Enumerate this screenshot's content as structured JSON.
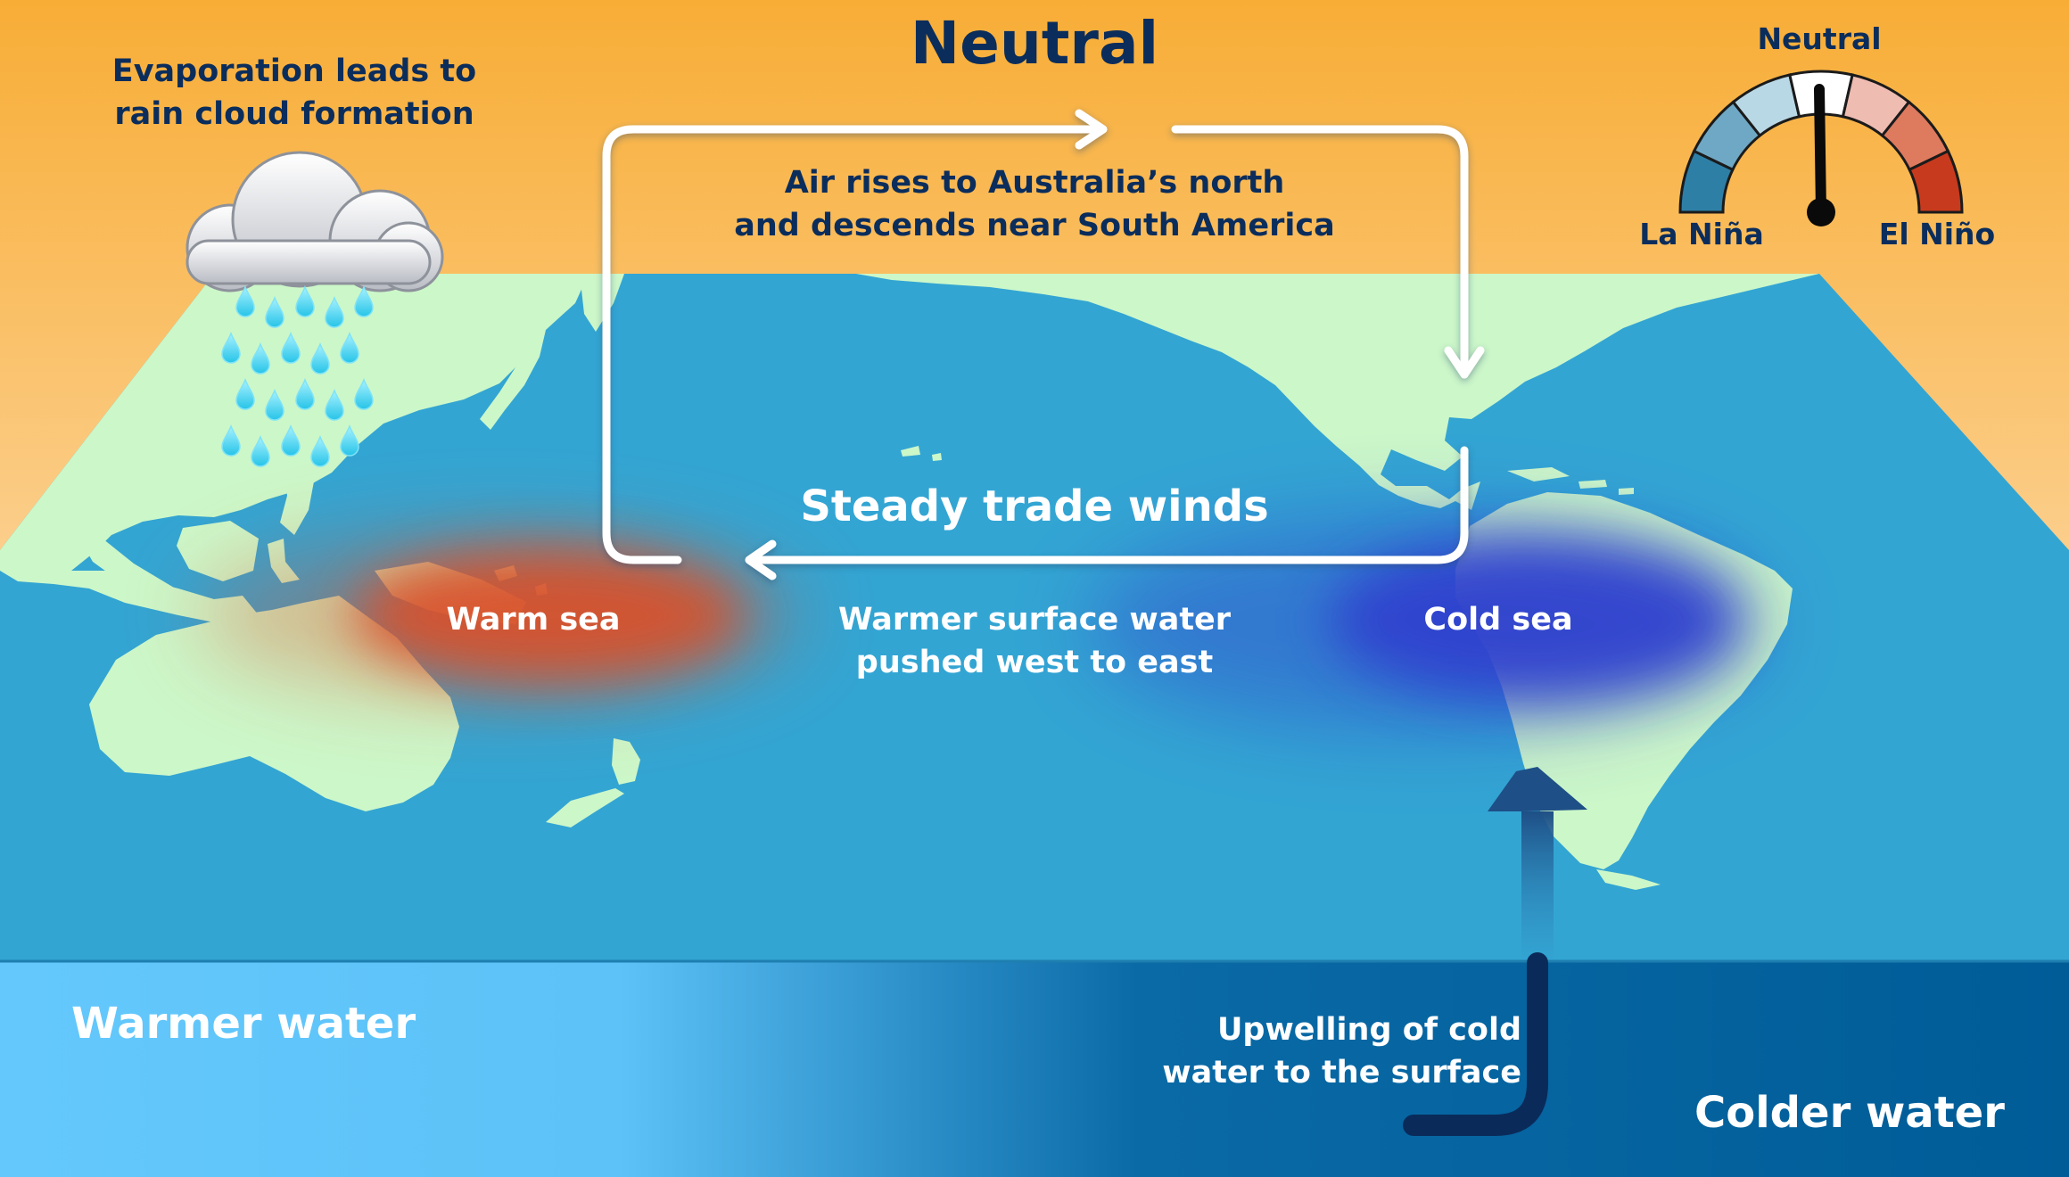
{
  "title": "Neutral",
  "cloud": {
    "caption_line1": "Evaporation leads to",
    "caption_line2": "rain cloud formation",
    "icon": "rain-cloud-icon"
  },
  "circulation": {
    "line1": "Air rises to Australia’s north",
    "line2": "and descends near South America"
  },
  "trade_winds": "Steady trade winds",
  "sea": {
    "warm": "Warm sea",
    "cold": "Cold sea",
    "surface_line1": "Warmer surface water",
    "surface_line2": "pushed west to east"
  },
  "subsurface": {
    "warmer": "Warmer water",
    "colder": "Colder water",
    "upwelling_line1": "Upwelling of cold",
    "upwelling_line2": "water to the surface"
  },
  "gauge": {
    "neutral": "Neutral",
    "la_nina": "La Niña",
    "el_nino": "El Niño",
    "segment_colors": [
      "#2e7fa6",
      "#6fa8c4",
      "#b9d8e5",
      "#ffffff",
      "#efbcb2",
      "#de7a5e",
      "#c83a1d"
    ]
  },
  "colors": {
    "sky_top": "#f8b038",
    "sky_bottom": "#fde8cc",
    "ocean": "#33a5d3",
    "land": "#ccf7c9",
    "warm_sea": "#d9512a",
    "cold_sea": "#2f3fd0",
    "label_dark": "#0b2d5c",
    "deep_warm": "#62c6fb",
    "deep_cold": "#005d98"
  }
}
